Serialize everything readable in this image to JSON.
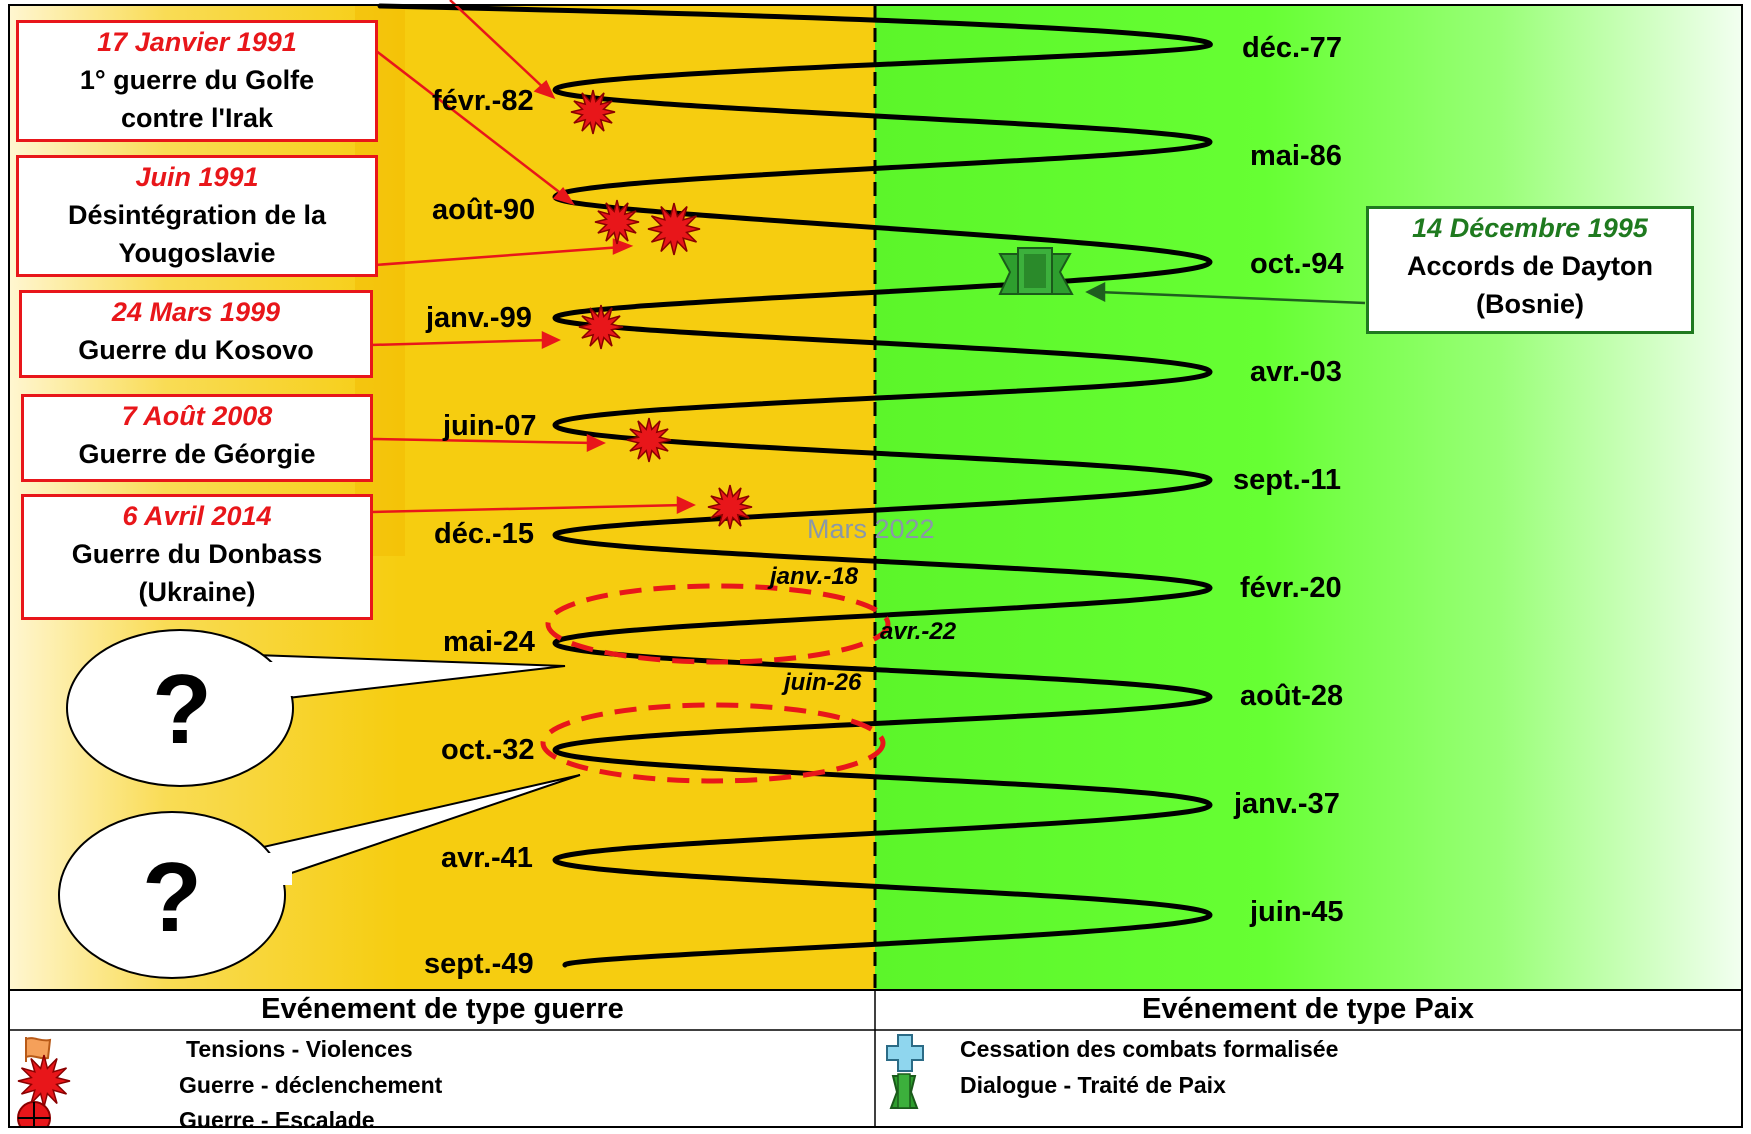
{
  "events_war": [
    {
      "date": "17 Janvier 1991",
      "lines": [
        "1° guerre du Golfe",
        "contre l'Irak"
      ]
    },
    {
      "date": "Juin 1991",
      "lines": [
        "Désintégration de la",
        "Yougoslavie"
      ]
    },
    {
      "date": "24 Mars 1999",
      "lines": [
        "Guerre du Kosovo"
      ]
    },
    {
      "date": "7 Août 2008",
      "lines": [
        "Guerre de Géorgie"
      ]
    },
    {
      "date": "6 Avril 2014",
      "lines": [
        "Guerre du Donbass",
        "(Ukraine)"
      ]
    }
  ],
  "event_peace": {
    "date": "14 Décembre 1995",
    "lines": [
      "Accords de Dayton",
      "(Bosnie)"
    ]
  },
  "left_dates": [
    "févr.-82",
    "août-90",
    "janv.-99",
    "juin-07",
    "déc.-15",
    "mai-24",
    "oct.-32",
    "avr.-41",
    "sept.-49"
  ],
  "right_dates": [
    "déc.-77",
    "mai-86",
    "oct.-94",
    "avr.-03",
    "sept.-11",
    "févr.-20",
    "août-28",
    "janv.-37",
    "juin-45"
  ],
  "inner_dates": [
    "janv.-18",
    "avr.-22",
    "juin-26"
  ],
  "current_marker": "Mars 2022",
  "question_mark": "?",
  "legend": {
    "war_title": "Evénement de  type guerre",
    "peace_title": "Evénement de type Paix",
    "war_items": [
      {
        "icon": "flag-icon",
        "label": "Tensions - Violences"
      },
      {
        "icon": "explosion-icon",
        "label": "Guerre - déclenchement"
      },
      {
        "icon": "crosshair-icon",
        "label": "Guerre - Escalade"
      }
    ],
    "peace_items": [
      {
        "icon": "cross-icon",
        "label": "Cessation  des combats formalisée"
      },
      {
        "icon": "peace-treaty-icon",
        "label": "Dialogue - Traité de Paix"
      }
    ]
  },
  "colors": {
    "war_zone": "#f6cd10",
    "peace_zone": "#66ff33",
    "war_accent": "#e8161a",
    "peace_accent": "#1f7a1f"
  }
}
